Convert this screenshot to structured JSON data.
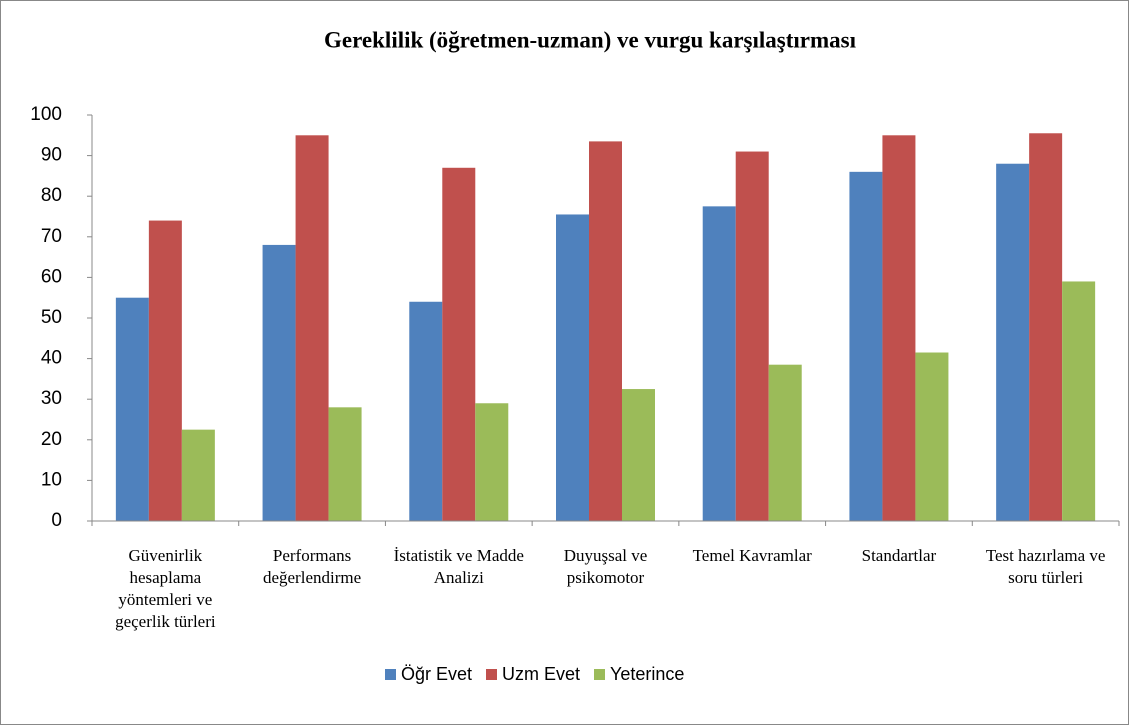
{
  "chart_data": {
    "type": "bar",
    "title": "Gereklilik (öğretmen-uzman) ve vurgu karşılaştırması",
    "categories": [
      "Güvenirlik hesaplama yöntemleri ve geçerlik türleri",
      "Performans değerlendirme",
      "İstatistik ve Madde Analizi",
      "Duyuşsal ve psikomotor",
      "Temel Kavramlar",
      "Standartlar",
      "Test hazırlama ve soru türleri"
    ],
    "series": [
      {
        "name": "Öğr Evet",
        "color": "#4f81bd",
        "values": [
          55,
          68,
          54,
          75.5,
          77.5,
          86,
          88
        ]
      },
      {
        "name": "Uzm Evet",
        "color": "#c0504d",
        "values": [
          74,
          95,
          87,
          93.5,
          91,
          95,
          95.5
        ]
      },
      {
        "name": "Yeterince",
        "color": "#9bbb59",
        "values": [
          22.5,
          28,
          29,
          32.5,
          38.5,
          41.5,
          59
        ]
      }
    ],
    "ylim": [
      0,
      100
    ],
    "yticks": [
      0,
      10,
      20,
      30,
      40,
      50,
      60,
      70,
      80,
      90,
      100
    ],
    "grid": false,
    "legend": "bottom"
  }
}
